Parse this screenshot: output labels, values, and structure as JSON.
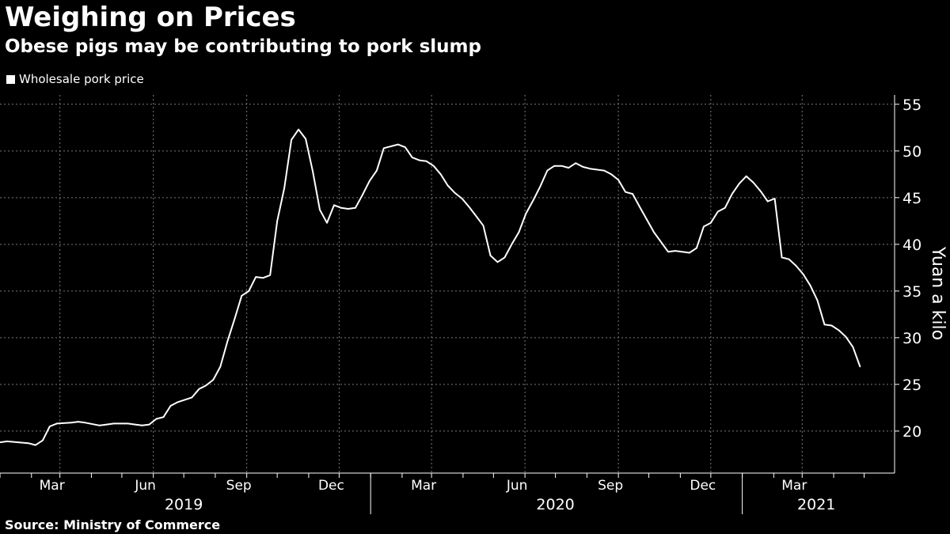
{
  "header": {
    "title": "Weighing on Prices",
    "subtitle": "Obese pigs may be contributing to pork slump"
  },
  "legend": {
    "label": "Wholesale pork price"
  },
  "footer": {
    "source": "Source: Ministry of Commerce"
  },
  "colors": {
    "background": "#000000",
    "line": "#ffffff",
    "grid": "#7a7a7a"
  },
  "chart_data": {
    "type": "line",
    "title": "Weighing on Prices",
    "subtitle": "Obese pigs may be contributing to pork slump",
    "ylabel": "Yuan a kilo",
    "ylim": [
      15.5,
      56
    ],
    "y_ticks": [
      20,
      25,
      30,
      35,
      40,
      45,
      50,
      55
    ],
    "y_axis_position": "right",
    "grid": true,
    "legend_placement": "top-left",
    "x_month_ticks": [
      {
        "label": "Mar",
        "date": "2019-03-01"
      },
      {
        "label": "Jun",
        "date": "2019-06-01"
      },
      {
        "label": "Sep",
        "date": "2019-09-01"
      },
      {
        "label": "Dec",
        "date": "2019-12-01"
      },
      {
        "label": "Mar",
        "date": "2020-03-01"
      },
      {
        "label": "Jun",
        "date": "2020-06-01"
      },
      {
        "label": "Sep",
        "date": "2020-09-01"
      },
      {
        "label": "Dec",
        "date": "2020-12-01"
      },
      {
        "label": "Mar",
        "date": "2021-03-01"
      }
    ],
    "x_year_labels": [
      {
        "label": "2019",
        "date": "2019-07-01"
      },
      {
        "label": "2020",
        "date": "2020-07-01"
      },
      {
        "label": "2021",
        "date": "2021-03-15"
      }
    ],
    "x_year_dividers": [
      "2020-01-01",
      "2021-01-01"
    ],
    "xlim": [
      "2019-01-01",
      "2021-05-31"
    ],
    "series": [
      {
        "name": "Wholesale pork price",
        "points": [
          [
            "2019-01-01",
            18.8
          ],
          [
            "2019-01-08",
            18.9
          ],
          [
            "2019-01-29",
            18.7
          ],
          [
            "2019-02-05",
            18.5
          ],
          [
            "2019-02-12",
            19.0
          ],
          [
            "2019-02-19",
            20.5
          ],
          [
            "2019-02-26",
            20.8
          ],
          [
            "2019-03-12",
            20.9
          ],
          [
            "2019-03-19",
            21.0
          ],
          [
            "2019-03-26",
            20.9
          ],
          [
            "2019-04-09",
            20.6
          ],
          [
            "2019-04-16",
            20.7
          ],
          [
            "2019-04-23",
            20.8
          ],
          [
            "2019-05-07",
            20.8
          ],
          [
            "2019-05-14",
            20.7
          ],
          [
            "2019-05-21",
            20.6
          ],
          [
            "2019-05-28",
            20.7
          ],
          [
            "2019-06-04",
            21.3
          ],
          [
            "2019-06-11",
            21.5
          ],
          [
            "2019-06-18",
            22.7
          ],
          [
            "2019-06-25",
            23.1
          ],
          [
            "2019-07-09",
            23.6
          ],
          [
            "2019-07-16",
            24.5
          ],
          [
            "2019-07-23",
            24.9
          ],
          [
            "2019-07-30",
            25.5
          ],
          [
            "2019-08-06",
            26.9
          ],
          [
            "2019-08-13",
            29.6
          ],
          [
            "2019-08-20",
            32.0
          ],
          [
            "2019-08-27",
            34.5
          ],
          [
            "2019-09-03",
            35.0
          ],
          [
            "2019-09-10",
            36.5
          ],
          [
            "2019-09-17",
            36.4
          ],
          [
            "2019-09-24",
            36.7
          ],
          [
            "2019-10-01",
            42.5
          ],
          [
            "2019-10-08",
            46.0
          ],
          [
            "2019-10-15",
            51.2
          ],
          [
            "2019-10-22",
            52.3
          ],
          [
            "2019-10-29",
            51.3
          ],
          [
            "2019-11-05",
            47.8
          ],
          [
            "2019-11-12",
            43.7
          ],
          [
            "2019-11-19",
            42.3
          ],
          [
            "2019-11-26",
            44.2
          ],
          [
            "2019-12-03",
            43.9
          ],
          [
            "2019-12-10",
            43.8
          ],
          [
            "2019-12-17",
            43.9
          ],
          [
            "2019-12-24",
            45.3
          ],
          [
            "2019-12-31",
            46.8
          ],
          [
            "2020-01-07",
            47.9
          ],
          [
            "2020-01-14",
            50.3
          ],
          [
            "2020-01-28",
            50.7
          ],
          [
            "2020-02-04",
            50.4
          ],
          [
            "2020-02-11",
            49.3
          ],
          [
            "2020-02-18",
            49.0
          ],
          [
            "2020-02-25",
            48.9
          ],
          [
            "2020-03-03",
            48.4
          ],
          [
            "2020-03-10",
            47.5
          ],
          [
            "2020-03-17",
            46.3
          ],
          [
            "2020-03-24",
            45.5
          ],
          [
            "2020-03-31",
            44.9
          ],
          [
            "2020-04-07",
            44.0
          ],
          [
            "2020-04-14",
            43.0
          ],
          [
            "2020-04-21",
            42.0
          ],
          [
            "2020-04-28",
            38.8
          ],
          [
            "2020-05-05",
            38.1
          ],
          [
            "2020-05-12",
            38.6
          ],
          [
            "2020-05-19",
            40.0
          ],
          [
            "2020-05-26",
            41.3
          ],
          [
            "2020-06-02",
            43.3
          ],
          [
            "2020-06-09",
            44.7
          ],
          [
            "2020-06-16",
            46.2
          ],
          [
            "2020-06-23",
            47.9
          ],
          [
            "2020-06-30",
            48.4
          ],
          [
            "2020-07-07",
            48.4
          ],
          [
            "2020-07-14",
            48.2
          ],
          [
            "2020-07-21",
            48.7
          ],
          [
            "2020-07-28",
            48.3
          ],
          [
            "2020-08-04",
            48.1
          ],
          [
            "2020-08-18",
            47.9
          ],
          [
            "2020-08-25",
            47.5
          ],
          [
            "2020-09-01",
            46.9
          ],
          [
            "2020-09-08",
            45.6
          ],
          [
            "2020-09-15",
            45.4
          ],
          [
            "2020-09-22",
            44.0
          ],
          [
            "2020-10-06",
            41.3
          ],
          [
            "2020-10-20",
            39.2
          ],
          [
            "2020-10-27",
            39.3
          ],
          [
            "2020-11-10",
            39.1
          ],
          [
            "2020-11-17",
            39.6
          ],
          [
            "2020-11-24",
            41.9
          ],
          [
            "2020-12-01",
            42.3
          ],
          [
            "2020-12-08",
            43.5
          ],
          [
            "2020-12-15",
            43.9
          ],
          [
            "2020-12-22",
            45.4
          ],
          [
            "2020-12-29",
            46.5
          ],
          [
            "2021-01-05",
            47.3
          ],
          [
            "2021-01-12",
            46.6
          ],
          [
            "2021-01-19",
            45.7
          ],
          [
            "2021-01-26",
            44.6
          ],
          [
            "2021-02-02",
            44.9
          ],
          [
            "2021-02-09",
            38.6
          ],
          [
            "2021-02-16",
            38.4
          ],
          [
            "2021-02-23",
            37.7
          ],
          [
            "2021-03-02",
            36.8
          ],
          [
            "2021-03-09",
            35.6
          ],
          [
            "2021-03-16",
            34.0
          ],
          [
            "2021-03-23",
            31.4
          ],
          [
            "2021-03-30",
            31.3
          ],
          [
            "2021-04-06",
            30.8
          ],
          [
            "2021-04-13",
            30.1
          ],
          [
            "2021-04-20",
            29.0
          ],
          [
            "2021-04-27",
            26.9
          ]
        ]
      }
    ]
  }
}
